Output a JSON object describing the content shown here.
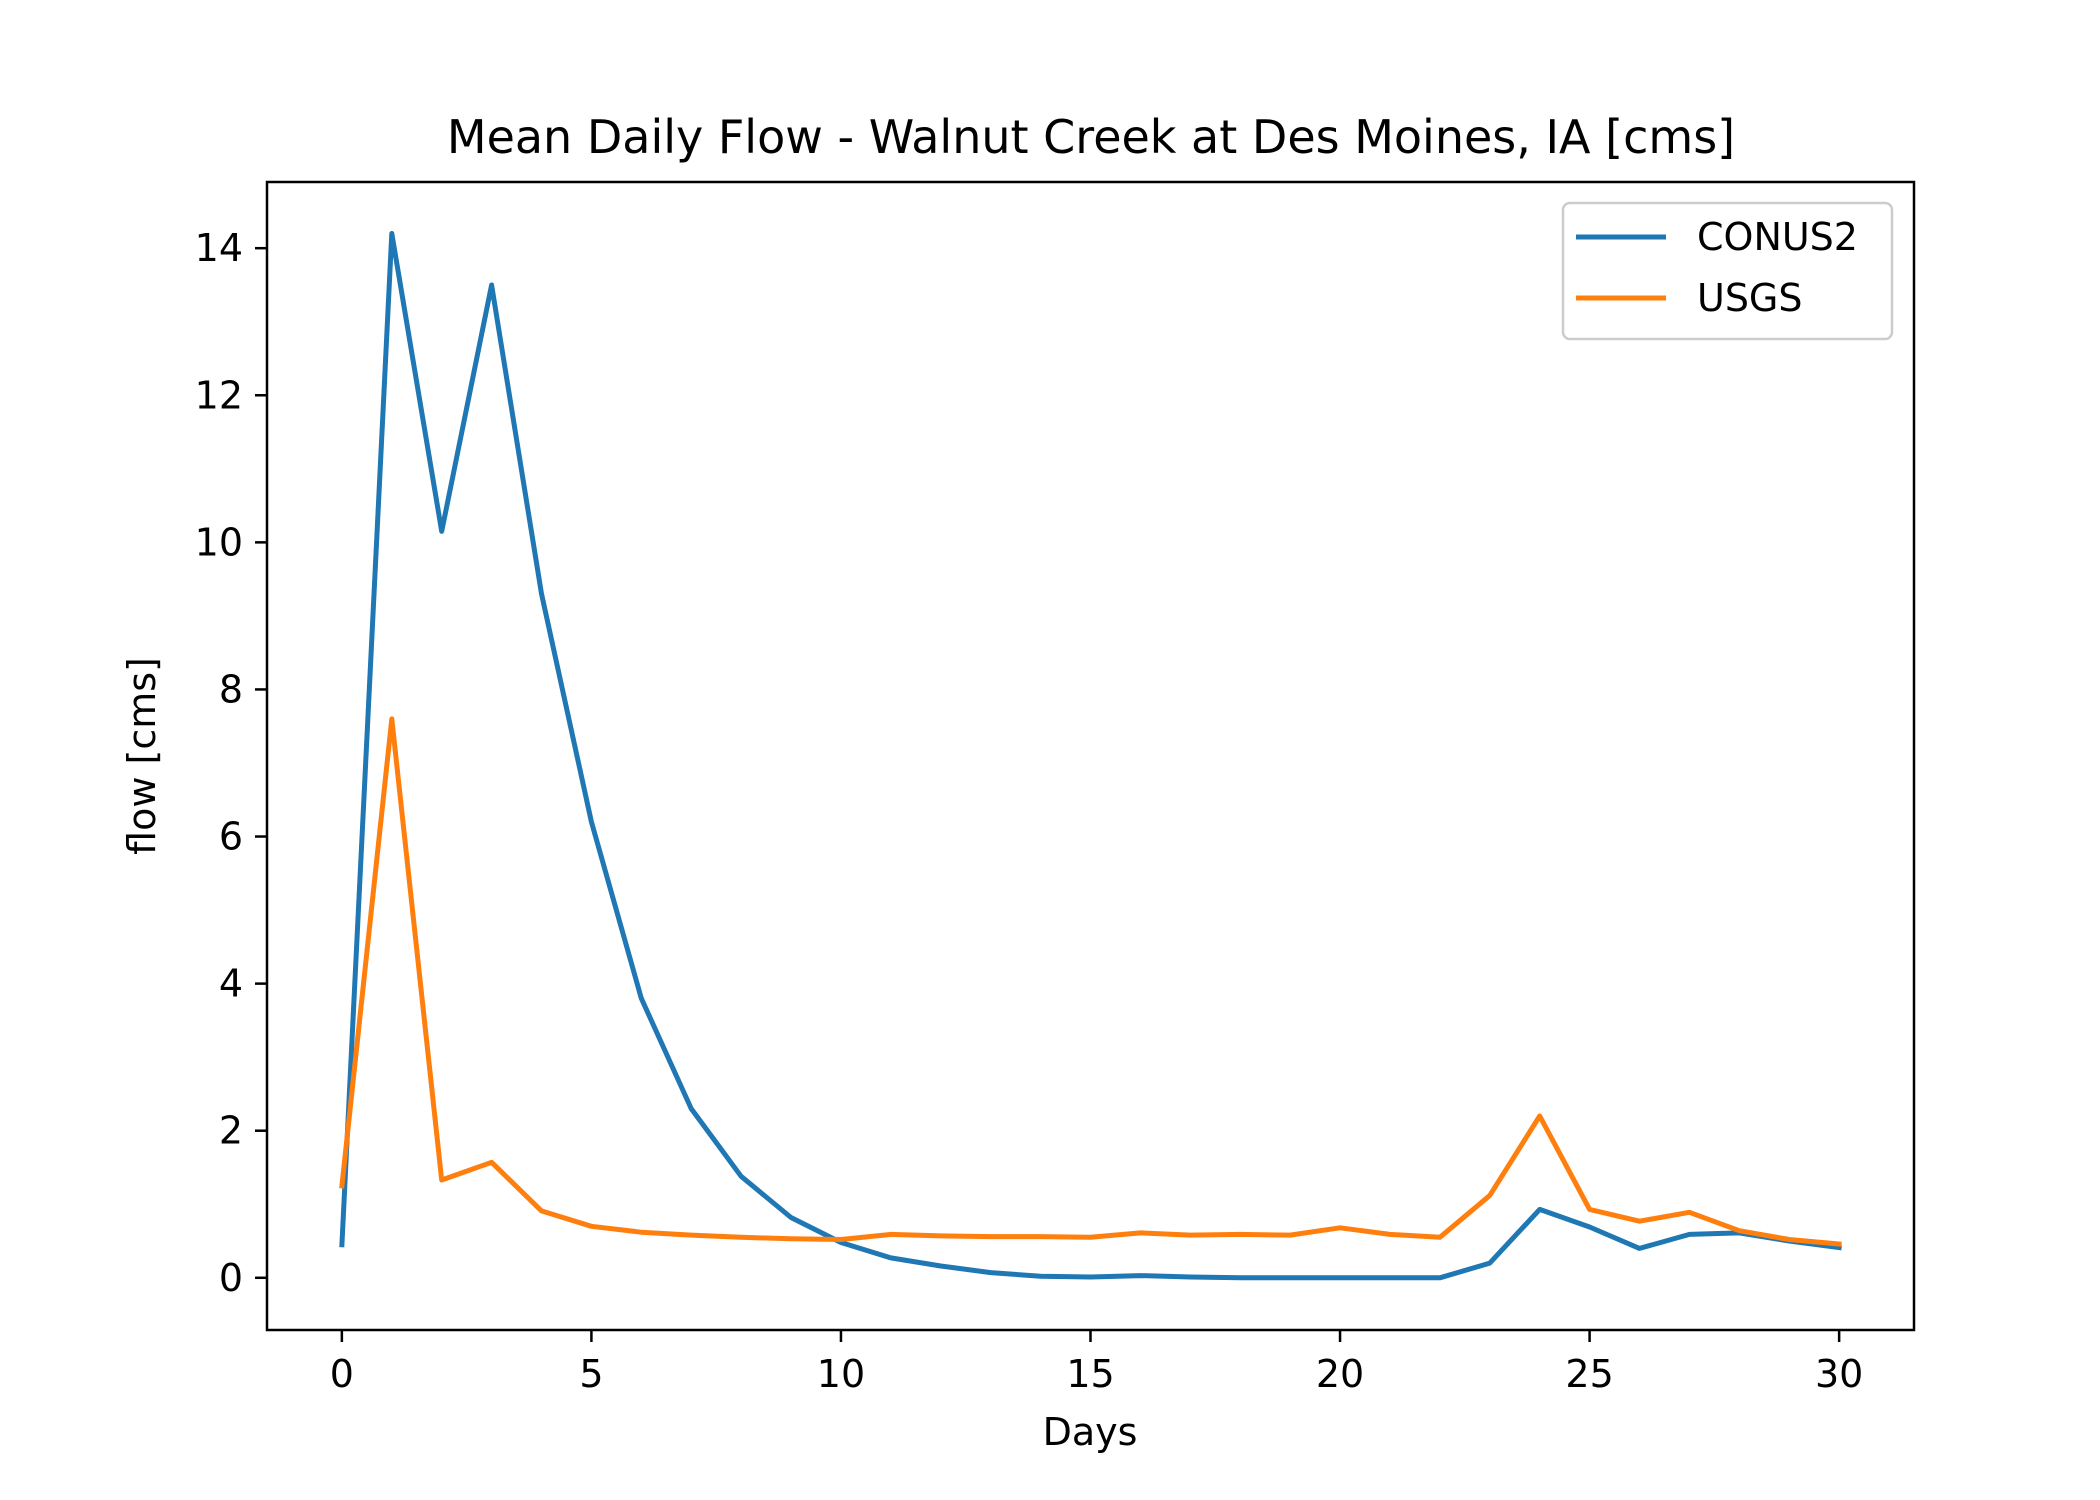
{
  "chart_data": {
    "type": "line",
    "title": "Mean Daily Flow - Walnut Creek at Des Moines, IA [cms]",
    "xlabel": "Days",
    "ylabel": "flow [cms]",
    "xlim": [
      -1.5,
      31.5
    ],
    "ylim": [
      -0.71,
      14.9
    ],
    "x_ticks": [
      0,
      5,
      10,
      15,
      20,
      25,
      30
    ],
    "x_tick_labels": [
      "0",
      "5",
      "10",
      "15",
      "20",
      "25",
      "30"
    ],
    "y_ticks": [
      0,
      2,
      4,
      6,
      8,
      10,
      12,
      14
    ],
    "y_tick_labels": [
      "0",
      "2",
      "4",
      "6",
      "8",
      "10",
      "12",
      "14"
    ],
    "grid": false,
    "legend_position": "top-right",
    "x": [
      0,
      1,
      2,
      3,
      4,
      5,
      6,
      7,
      8,
      9,
      10,
      11,
      12,
      13,
      14,
      15,
      16,
      17,
      18,
      19,
      20,
      21,
      22,
      23,
      24,
      25,
      26,
      27,
      28,
      29,
      30
    ],
    "series": [
      {
        "name": "CONUS2",
        "color": "#1f77b4",
        "values": [
          0.45,
          14.2,
          10.15,
          13.5,
          9.3,
          6.2,
          3.8,
          2.3,
          1.38,
          0.82,
          0.48,
          0.27,
          0.16,
          0.07,
          0.02,
          0.01,
          0.03,
          0.01,
          0.0,
          0.0,
          0.0,
          0.0,
          0.0,
          0.2,
          0.93,
          0.69,
          0.4,
          0.59,
          0.61,
          0.5,
          0.41
        ]
      },
      {
        "name": "USGS",
        "color": "#ff7f0e",
        "values": [
          1.25,
          7.6,
          1.33,
          1.57,
          0.91,
          0.7,
          0.62,
          0.58,
          0.55,
          0.53,
          0.52,
          0.59,
          0.57,
          0.56,
          0.56,
          0.55,
          0.61,
          0.58,
          0.59,
          0.58,
          0.68,
          0.59,
          0.55,
          1.12,
          2.2,
          0.93,
          0.77,
          0.89,
          0.64,
          0.52,
          0.46
        ]
      }
    ]
  }
}
